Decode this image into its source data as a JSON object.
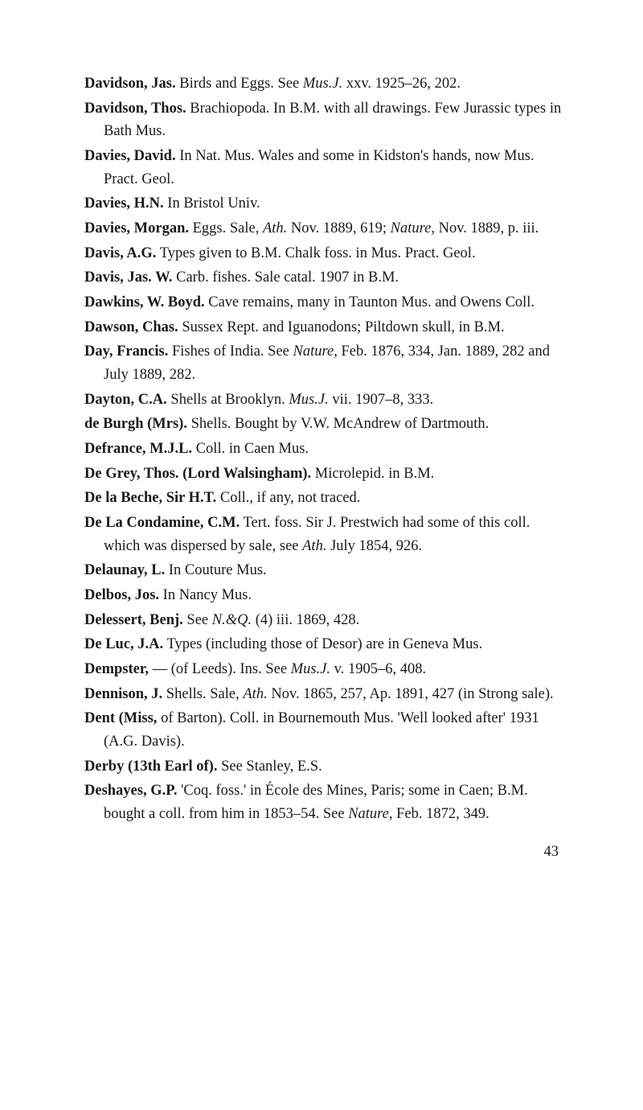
{
  "entries": [
    {
      "html": "<span class='bold'>Davidson, Jas.</span> Birds and Eggs. See <span class='italic'>Mus.J.</span> xxv. 1925–26, 202."
    },
    {
      "html": "<span class='bold'>Davidson, Thos.</span> Brachiopoda. In B.M. with all drawings. Few Jurassic types in Bath Mus."
    },
    {
      "html": "<span class='bold'>Davies, David.</span> In Nat. Mus. Wales and some in Kidston's hands, now Mus. Pract. Geol."
    },
    {
      "html": "<span class='bold'>Davies, H.N.</span> In Bristol Univ."
    },
    {
      "html": "<span class='bold'>Davies, Morgan.</span> Eggs. Sale, <span class='italic'>Ath.</span> Nov. 1889, 619; <span class='italic'>Nature</span>, Nov. 1889, p. iii."
    },
    {
      "html": "<span class='bold'>Davis, A.G.</span> Types given to B.M. Chalk foss. in Mus. Pract. Geol."
    },
    {
      "html": "<span class='bold'>Davis, Jas. W.</span> Carb. fishes. Sale catal. 1907 in B.M."
    },
    {
      "html": "<span class='bold'>Dawkins, W. Boyd.</span> Cave remains, many in Taunton Mus. and Owens Coll."
    },
    {
      "html": "<span class='bold'>Dawson, Chas.</span> Sussex Rept. and Iguanodons; Piltdown skull, in B.M."
    },
    {
      "html": "<span class='bold'>Day, Francis.</span> Fishes of India. See <span class='italic'>Nature</span>, Feb. 1876, 334, Jan. 1889, 282 and July 1889, 282."
    },
    {
      "html": "<span class='bold'>Dayton, C.A.</span> Shells at Brooklyn. <span class='italic'>Mus.J.</span> vii. 1907–8, 333."
    },
    {
      "html": "<span class='bold'>de Burgh (Mrs).</span> Shells. Bought by V.W. McAndrew of Dartmouth."
    },
    {
      "html": "<span class='bold'>Defrance, M.J.L.</span> Coll. in Caen Mus."
    },
    {
      "html": "<span class='bold'>De Grey, Thos. (Lord Walsingham).</span> Microlepid. in B.M."
    },
    {
      "html": "<span class='bold'>De la Beche, Sir H.T.</span> Coll., if any, not traced."
    },
    {
      "html": "<span class='bold'>De La Condamine, C.M.</span> Tert. foss. Sir J. Prestwich had some of this coll. which was dispersed by sale, see <span class='italic'>Ath.</span> July 1854, 926."
    },
    {
      "html": "<span class='bold'>Delaunay, L.</span> In Couture Mus."
    },
    {
      "html": "<span class='bold'>Delbos, Jos.</span> In Nancy Mus."
    },
    {
      "html": "<span class='bold'>Delessert, Benj.</span> See <span class='italic'>N.&amp;Q.</span> (4) iii. 1869, 428."
    },
    {
      "html": "<span class='bold'>De Luc, J.A.</span> Types (including those of Desor) are in Geneva Mus."
    },
    {
      "html": "<span class='bold'>Dempster,</span> — (of Leeds). Ins. See <span class='italic'>Mus.J.</span> v. 1905–6, 408."
    },
    {
      "html": "<span class='bold'>Dennison, J.</span> Shells. Sale, <span class='italic'>Ath.</span> Nov. 1865, 257, Ap. 1891, 427 (in Strong sale)."
    },
    {
      "html": "<span class='bold'>Dent (Miss,</span> of Barton). Coll. in Bournemouth Mus. 'Well looked after' 1931 (A.G. Davis)."
    },
    {
      "html": "<span class='bold'>Derby (13th Earl of).</span> See Stanley, E.S."
    },
    {
      "html": "<span class='bold'>Deshayes, G.P.</span> 'Coq. foss.' in École des Mines, Paris; some in Caen; B.M. bought a coll. from him in 1853–54. See <span class='italic'>Nature</span>, Feb. 1872, 349."
    }
  ],
  "page_number": "43"
}
